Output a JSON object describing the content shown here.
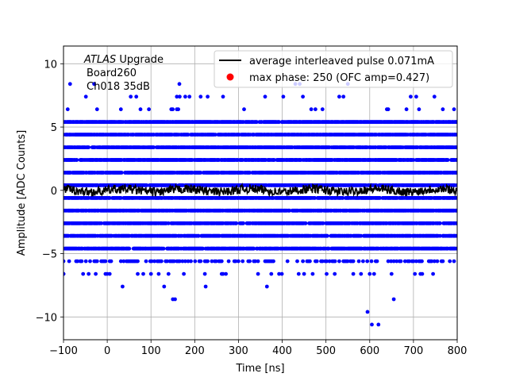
{
  "chart_data": {
    "type": "scatter",
    "xlabel": "Time [ns]",
    "ylabel": "Amplitude [ADC Counts]",
    "xlim": [
      -100,
      800
    ],
    "ylim": [
      -11.8,
      11.4
    ],
    "xticks": [
      -100,
      0,
      100,
      200,
      300,
      400,
      500,
      600,
      700,
      800
    ],
    "yticks": [
      -10,
      -5,
      0,
      5,
      10
    ],
    "grid": true,
    "legend_position": "top-right",
    "annotation": {
      "line1_italic": "ATLAS",
      "line1_rest": " Upgrade",
      "line2": "Board260",
      "line3": "Ch018 35dB"
    },
    "series": [
      {
        "name": "average interleaved pulse 0.071mA",
        "kind": "line",
        "color": "#000000",
        "x_range": [
          -100,
          800
        ],
        "mean": 0.0,
        "noise_amplitude": 0.35
      },
      {
        "name": "max phase: 250 (OFC amp=0.427)",
        "kind": "scatter",
        "color": "#0000ff",
        "legend_marker_color": "#ff0000",
        "dense_levels": [
          -4.6,
          -3.6,
          -2.6,
          -1.6,
          -0.6,
          0.4,
          1.4,
          2.4,
          3.4,
          4.4,
          5.4
        ],
        "sparse_levels": [
          6.4,
          7.4,
          -5.6,
          -6.6
        ],
        "outliers": [
          {
            "x": -85,
            "y": 8.4
          },
          {
            "x": -30,
            "y": 8.4
          },
          {
            "x": 165,
            "y": 8.4
          },
          {
            "x": 430,
            "y": 8.4
          },
          {
            "x": 440,
            "y": 8.4
          },
          {
            "x": 550,
            "y": 8.4
          },
          {
            "x": -100,
            "y": -6.6
          },
          {
            "x": 0,
            "y": -6.6
          },
          {
            "x": 100,
            "y": -6.6
          },
          {
            "x": 175,
            "y": -6.6
          },
          {
            "x": 375,
            "y": -6.6
          },
          {
            "x": 450,
            "y": -6.6
          },
          {
            "x": 520,
            "y": -6.6
          },
          {
            "x": 580,
            "y": -6.6
          },
          {
            "x": 600,
            "y": -6.6
          },
          {
            "x": 610,
            "y": -6.6
          },
          {
            "x": 650,
            "y": -6.6
          },
          {
            "x": 720,
            "y": -6.6
          },
          {
            "x": 35,
            "y": -7.6
          },
          {
            "x": 130,
            "y": -7.6
          },
          {
            "x": 225,
            "y": -7.6
          },
          {
            "x": 365,
            "y": -7.6
          },
          {
            "x": 150,
            "y": -8.6
          },
          {
            "x": 155,
            "y": -8.6
          },
          {
            "x": 655,
            "y": -8.6
          },
          {
            "x": 595,
            "y": -9.6
          },
          {
            "x": 605,
            "y": -10.6
          },
          {
            "x": 620,
            "y": -10.6
          }
        ]
      }
    ]
  }
}
